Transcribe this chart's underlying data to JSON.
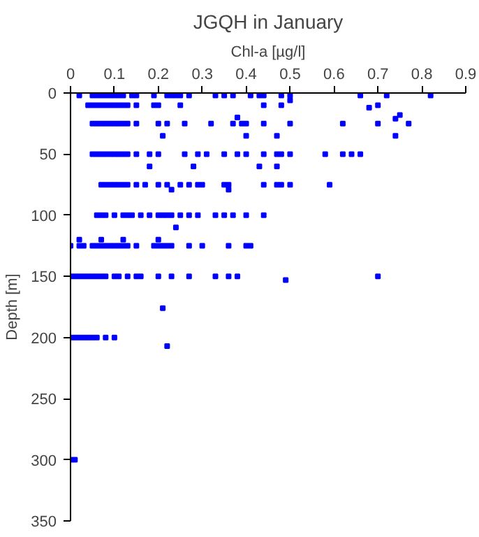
{
  "chart_data": {
    "type": "scatter",
    "title": "JGQH in January",
    "xlabel": "Chl-a [µg/l]",
    "ylabel": "Depth [m]",
    "xlim": [
      0,
      0.9
    ],
    "xticks": [
      0,
      0.1,
      0.2,
      0.3,
      0.4,
      0.5,
      0.6,
      0.7,
      0.8,
      0.9
    ],
    "ylim": [
      350,
      0
    ],
    "yticks": [
      0,
      50,
      100,
      150,
      200,
      250,
      300,
      350
    ],
    "marker": "square",
    "series": [
      {
        "color": "#0000ff",
        "x": [
          0.02,
          0.05,
          0.06,
          0.07,
          0.08,
          0.09,
          0.1,
          0.11,
          0.12,
          0.14,
          0.15,
          0.19,
          0.22,
          0.23,
          0.24,
          0.25,
          0.27,
          0.33,
          0.35,
          0.37,
          0.41,
          0.43,
          0.44,
          0.48,
          0.5,
          0.66,
          0.72,
          0.82,
          0.04,
          0.05,
          0.06,
          0.07,
          0.08,
          0.09,
          0.1,
          0.11,
          0.12,
          0.13,
          0.15,
          0.19,
          0.2,
          0.25,
          0.44,
          0.48,
          0.5,
          0.68,
          0.7,
          0.05,
          0.06,
          0.07,
          0.08,
          0.09,
          0.1,
          0.11,
          0.12,
          0.13,
          0.15,
          0.2,
          0.22,
          0.26,
          0.32,
          0.37,
          0.39,
          0.4,
          0.44,
          0.5,
          0.62,
          0.7,
          0.77,
          0.38,
          0.74,
          0.75,
          0.21,
          0.4,
          0.47,
          0.74,
          0.05,
          0.06,
          0.07,
          0.08,
          0.09,
          0.1,
          0.11,
          0.12,
          0.13,
          0.15,
          0.18,
          0.2,
          0.26,
          0.29,
          0.31,
          0.35,
          0.38,
          0.4,
          0.44,
          0.47,
          0.48,
          0.5,
          0.58,
          0.62,
          0.64,
          0.66,
          0.18,
          0.28,
          0.43,
          0.47,
          0.07,
          0.08,
          0.09,
          0.1,
          0.11,
          0.12,
          0.13,
          0.15,
          0.17,
          0.2,
          0.22,
          0.25,
          0.27,
          0.29,
          0.3,
          0.35,
          0.36,
          0.44,
          0.47,
          0.48,
          0.5,
          0.59,
          0.23,
          0.36,
          0.06,
          0.07,
          0.08,
          0.1,
          0.12,
          0.13,
          0.14,
          0.16,
          0.18,
          0.2,
          0.21,
          0.22,
          0.23,
          0.25,
          0.27,
          0.29,
          0.33,
          0.35,
          0.37,
          0.4,
          0.44,
          0.24,
          0.0,
          0.02,
          0.03,
          0.05,
          0.06,
          0.07,
          0.08,
          0.09,
          0.1,
          0.11,
          0.12,
          0.13,
          0.15,
          0.19,
          0.2,
          0.21,
          0.22,
          0.23,
          0.27,
          0.3,
          0.36,
          0.4,
          0.41,
          0.02,
          0.07,
          0.12,
          0.2,
          0.0,
          0.01,
          0.02,
          0.03,
          0.04,
          0.05,
          0.06,
          0.07,
          0.08,
          0.1,
          0.11,
          0.13,
          0.15,
          0.16,
          0.2,
          0.23,
          0.27,
          0.33,
          0.36,
          0.38,
          0.49,
          0.7,
          0.21,
          0.0,
          0.01,
          0.02,
          0.03,
          0.04,
          0.05,
          0.06,
          0.08,
          0.1,
          0.22,
          0.0,
          0.01
        ],
        "values": [
          2,
          2,
          2,
          2,
          2,
          2,
          2,
          2,
          2,
          2,
          2,
          2,
          2,
          2,
          2,
          2,
          2,
          2,
          2,
          2,
          2,
          2,
          2,
          2,
          2,
          2,
          2,
          2,
          10,
          10,
          10,
          10,
          10,
          10,
          10,
          10,
          10,
          10,
          10,
          10,
          10,
          10,
          10,
          10,
          6,
          12,
          10,
          25,
          25,
          25,
          25,
          25,
          25,
          25,
          25,
          25,
          25,
          25,
          25,
          25,
          25,
          25,
          25,
          25,
          25,
          25,
          25,
          25,
          25,
          20,
          21,
          18,
          35,
          35,
          35,
          35,
          50,
          50,
          50,
          50,
          50,
          50,
          50,
          50,
          50,
          50,
          50,
          50,
          50,
          50,
          50,
          50,
          50,
          50,
          50,
          50,
          50,
          50,
          50,
          50,
          50,
          50,
          60,
          60,
          60,
          60,
          75,
          75,
          75,
          75,
          75,
          75,
          75,
          75,
          75,
          75,
          75,
          75,
          75,
          75,
          75,
          75,
          75,
          75,
          75,
          75,
          75,
          75,
          79,
          79,
          100,
          100,
          100,
          100,
          100,
          100,
          100,
          100,
          100,
          100,
          100,
          100,
          100,
          100,
          100,
          100,
          100,
          100,
          100,
          100,
          100,
          110,
          125,
          125,
          125,
          125,
          125,
          125,
          125,
          125,
          125,
          125,
          125,
          125,
          125,
          125,
          125,
          125,
          125,
          125,
          125,
          125,
          125,
          125,
          125,
          120,
          120,
          120,
          120,
          150,
          150,
          150,
          150,
          150,
          150,
          150,
          150,
          150,
          150,
          150,
          150,
          150,
          150,
          150,
          150,
          150,
          150,
          150,
          150,
          153,
          150,
          176,
          200,
          200,
          200,
          200,
          200,
          200,
          200,
          200,
          200,
          207,
          300,
          300
        ]
      }
    ]
  }
}
